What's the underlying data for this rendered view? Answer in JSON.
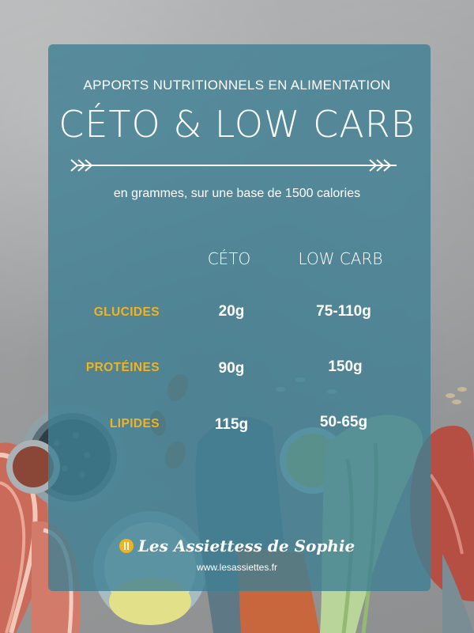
{
  "header": {
    "eyebrow": "APPORTS NUTRITIONNELS EN ALIMENTATION",
    "title": "CÉTO & LOW CARB",
    "subtitle": "en grammes, sur une base de 1500 calories"
  },
  "table": {
    "columns": [
      "CÉTO",
      "LOW CARB"
    ],
    "rows": [
      {
        "label": "GLUCIDES",
        "ceto": "20g",
        "lowcarb": "75-110g"
      },
      {
        "label": "PROTÉINES",
        "ceto": "90g",
        "lowcarb": "150g"
      },
      {
        "label": "LIPIDES",
        "ceto": "115g",
        "lowcarb": "50-65g"
      }
    ]
  },
  "footer": {
    "brand": "Les Assiettess de Sophie",
    "url": "www.lesassiettes.fr"
  },
  "colors": {
    "card": "#3e8094",
    "accent": "#f2b31e",
    "text": "#ffffff"
  }
}
